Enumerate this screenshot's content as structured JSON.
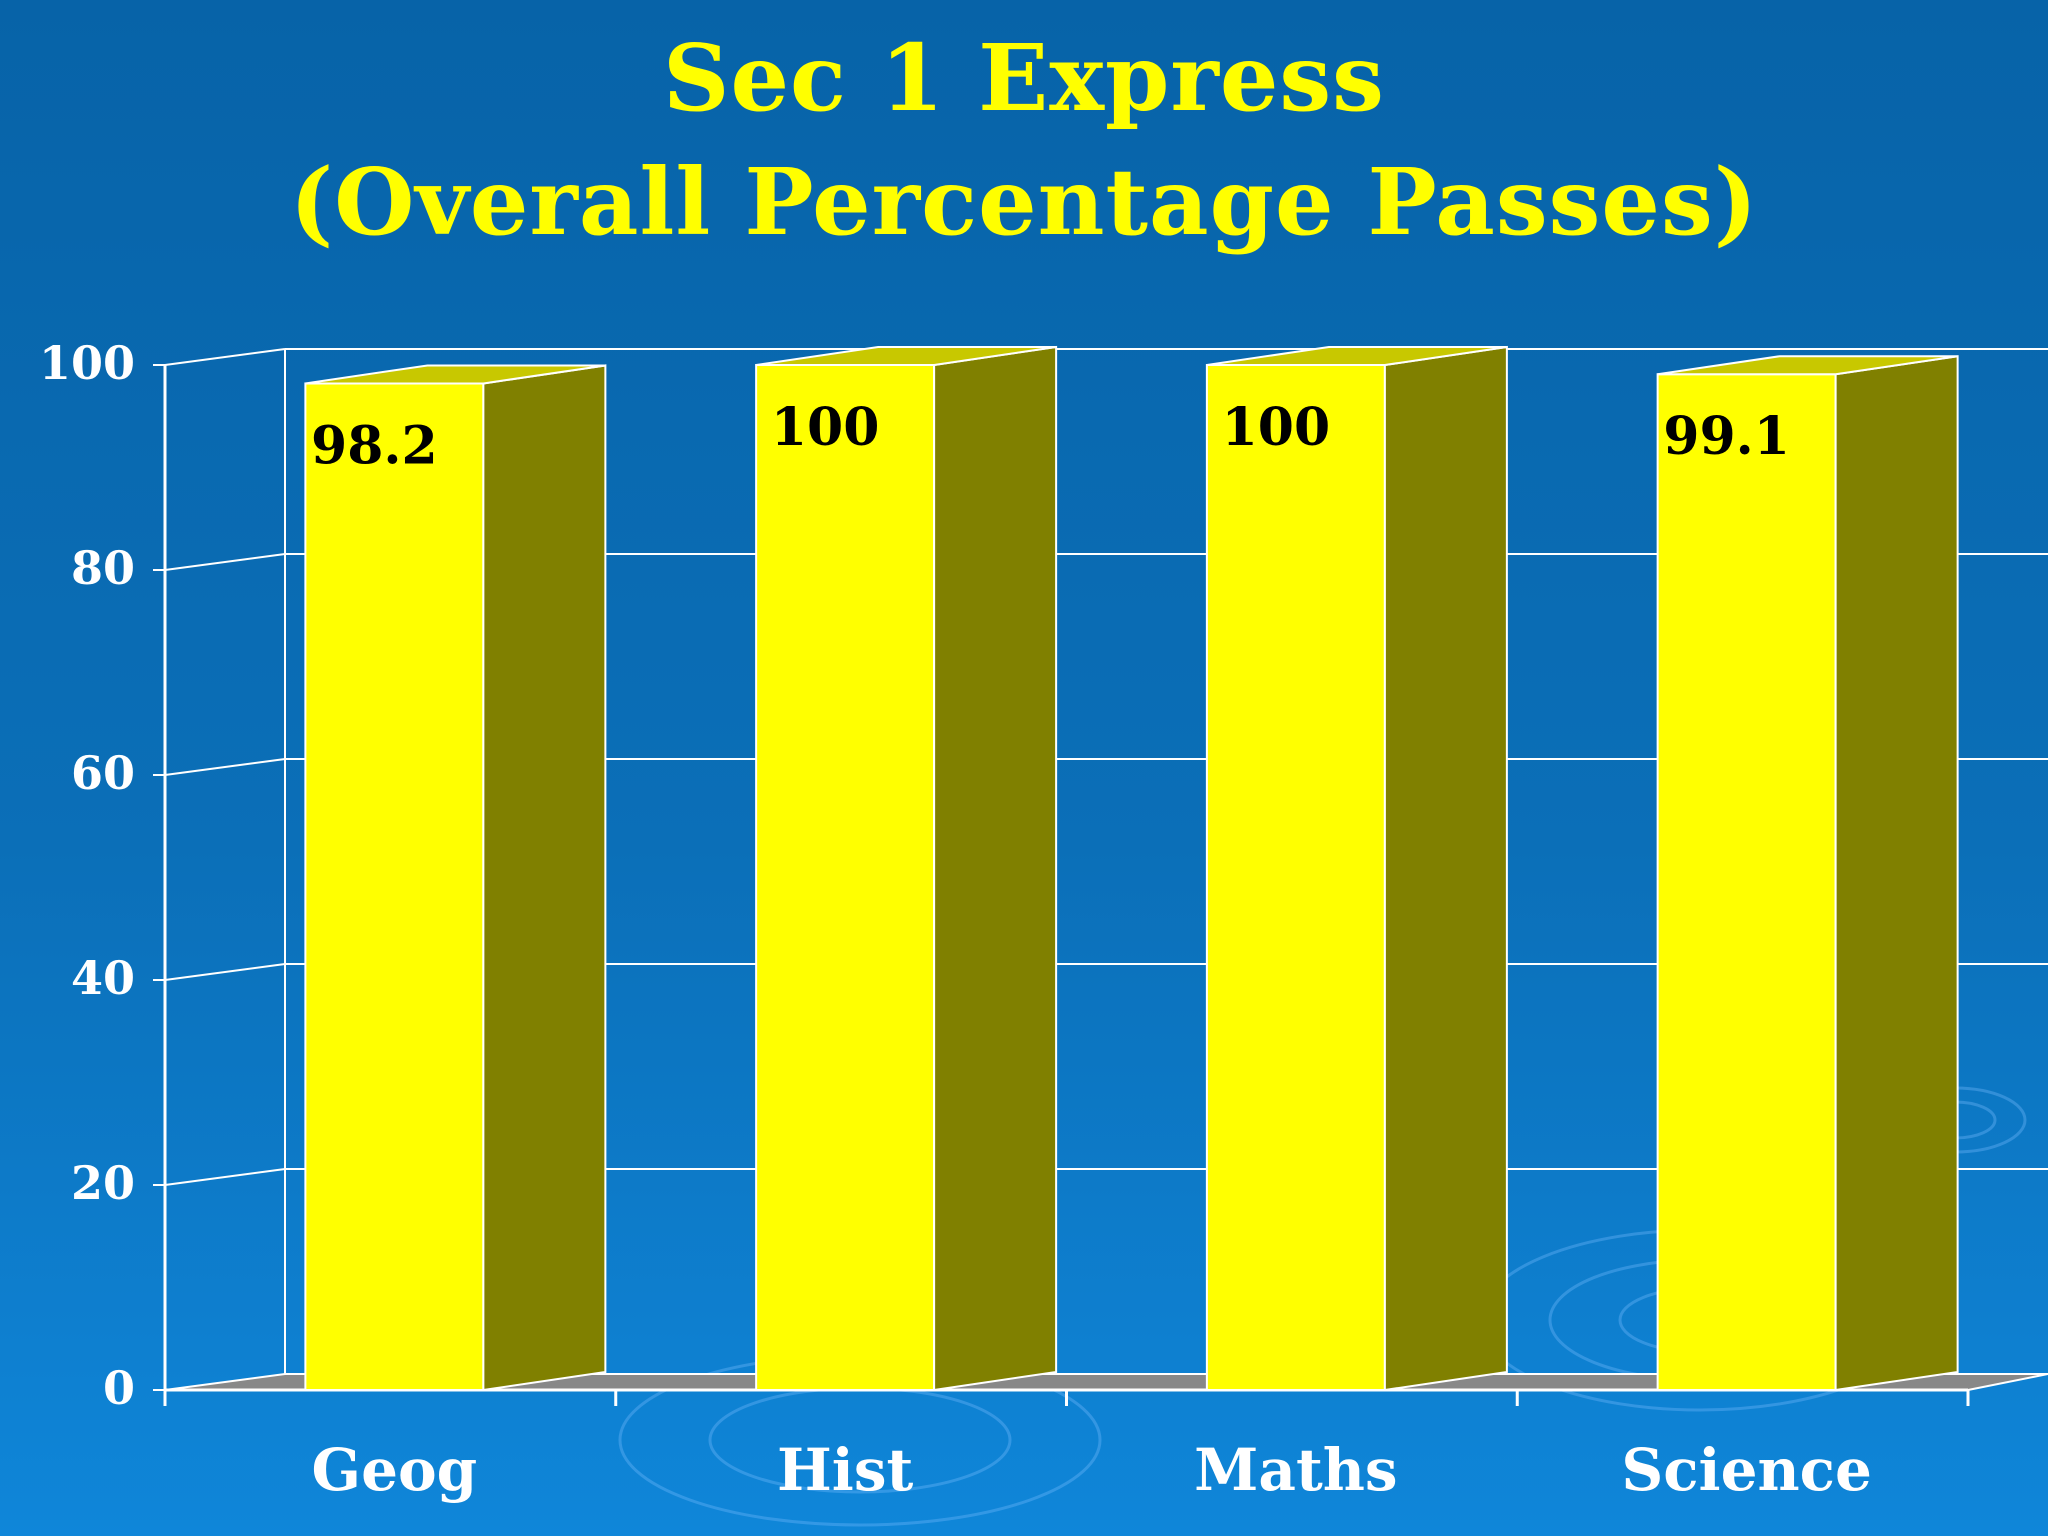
{
  "slide": {
    "title_line1": "Sec 1 Express",
    "title_line2": "(Overall Percentage Passes)"
  },
  "colors": {
    "background_top": "#0763a8",
    "background_bottom": "#0f86d9",
    "title": "#ffff00",
    "bar_front": "#ffff00",
    "bar_side": "#808000",
    "bar_top": "#c8c800",
    "floor": "#888888",
    "grid": "#ffffff",
    "axis_text": "#ffffff",
    "data_label": "#000000"
  },
  "chart_data": {
    "type": "bar",
    "style": "3d-column",
    "title": "Sec 1 Express (Overall Percentage Passes)",
    "categories": [
      "Geog",
      "Hist",
      "Maths",
      "Science"
    ],
    "values": [
      98.2,
      100,
      100,
      99.1
    ],
    "data_labels": [
      "98.2",
      "100",
      "100",
      "99.1"
    ],
    "y_ticks": [
      "0",
      "20",
      "40",
      "60",
      "80",
      "100"
    ],
    "ylim": [
      0,
      100
    ],
    "xlabel": "",
    "ylabel": "",
    "grid": true,
    "legend": "none"
  }
}
